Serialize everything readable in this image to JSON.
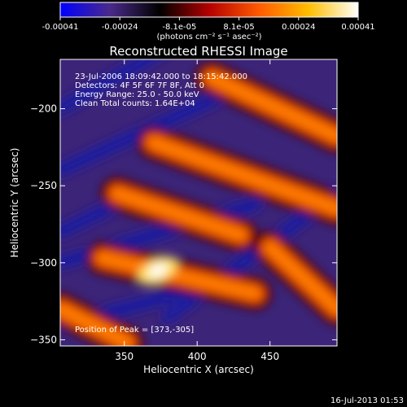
{
  "colorbar": {
    "tick_labels": [
      "-0.00041",
      "-0.00024",
      "-8.1e-05",
      "8.1e-05",
      "0.00024",
      "0.00041"
    ],
    "units": "(photons cm⁻² s⁻¹ asec⁻²)",
    "stops": [
      "#0000ff",
      "#4a2a8a",
      "#000000",
      "#b40000",
      "#ff5a00",
      "#ffbe00",
      "#ffffff"
    ]
  },
  "chart_data": {
    "type": "heatmap",
    "title": "Reconstructed RHESSI Image",
    "xlabel": "Heliocentric X (arcsec)",
    "ylabel": "Heliocentric Y (arcsec)",
    "xlim": [
      306,
      496
    ],
    "ylim": [
      -354,
      -168
    ],
    "x_ticks": [
      350,
      400,
      450
    ],
    "x_tick_labels": [
      "350",
      "400",
      "450"
    ],
    "y_ticks": [
      -200,
      -250,
      -300,
      -350
    ],
    "y_tick_labels": [
      "−200",
      "−250",
      "−300",
      "−350"
    ],
    "annotations": [
      "23-Jul-2006 18:09:42.000 to 18:15:42.000",
      "Detectors: 4F 5F 6F 7F 8F, Att 0",
      "Energy Range: 25.0 - 50.0 keV",
      "Clean    Total counts: 1.64E+04"
    ],
    "peak_label": "Position of Peak = [373,-305]",
    "peak_position": [
      373,
      -305
    ],
    "bright_bands": [
      {
        "x": [
          306,
          352
        ],
        "y": [
          -330,
          -352
        ]
      },
      {
        "x": [
          335,
          440
        ],
        "y": [
          -297,
          -320
        ]
      },
      {
        "x": [
          345,
          430
        ],
        "y": [
          -255,
          -282
        ]
      },
      {
        "x": [
          370,
          496
        ],
        "y": [
          -222,
          -265
        ]
      },
      {
        "x": [
          410,
          496
        ],
        "y": [
          -180,
          -218
        ]
      },
      {
        "x": [
          450,
          496
        ],
        "y": [
          -290,
          -330
        ]
      }
    ]
  },
  "footer": {
    "timestamp": "16-Jul-2013 01:53"
  }
}
